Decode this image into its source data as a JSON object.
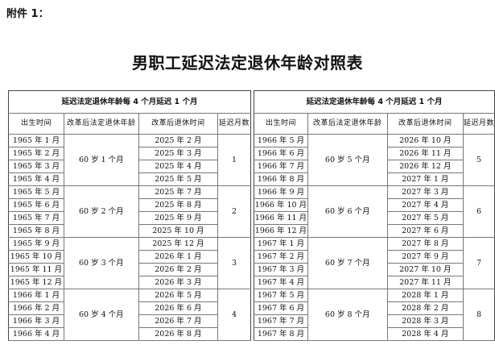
{
  "attachment_label": "附件 1：",
  "title": "男职工延迟法定退休年龄对照表",
  "tables": [
    {
      "header": "延迟法定退休年龄每 4 个月延迟 1 个月",
      "columns": [
        "出生时间",
        "改革后法定退休年龄",
        "改革后退休时间",
        "延迟月数"
      ],
      "groups": [
        {
          "age": "60 岁 1 个月",
          "delay": "1",
          "rows": [
            [
              "1965 年 1 月",
              "2025 年 2 月"
            ],
            [
              "1965 年 2 月",
              "2025 年 3 月"
            ],
            [
              "1965 年 3 月",
              "2025 年 4 月"
            ],
            [
              "1965 年 4 月",
              "2025 年 5 月"
            ]
          ]
        },
        {
          "age": "60 岁 2 个月",
          "delay": "2",
          "rows": [
            [
              "1965 年 5 月",
              "2025 年 7 月"
            ],
            [
              "1965 年 6 月",
              "2025 年 8 月"
            ],
            [
              "1965 年 7 月",
              "2025 年 9 月"
            ],
            [
              "1965 年 8 月",
              "2025 年 10 月"
            ]
          ]
        },
        {
          "age": "60 岁 3 个月",
          "delay": "3",
          "rows": [
            [
              "1965 年 9 月",
              "2025 年 12 月"
            ],
            [
              "1965 年 10 月",
              "2026 年 1 月"
            ],
            [
              "1965 年 11 月",
              "2026 年 2 月"
            ],
            [
              "1965 年 12 月",
              "2026 年 3 月"
            ]
          ]
        },
        {
          "age": "60 岁 4 个月",
          "delay": "4",
          "rows": [
            [
              "1966 年 1 月",
              "2026 年 5 月"
            ],
            [
              "1966 年 2 月",
              "2026 年 6 月"
            ],
            [
              "1966 年 3 月",
              "2026 年 7 月"
            ],
            [
              "1966 年 4 月",
              "2026 年 8 月"
            ]
          ]
        }
      ]
    },
    {
      "header": "延迟法定退休年龄每 4 个月延迟 1 个月",
      "columns": [
        "出生时间",
        "改革后法定退休年龄",
        "改革后退休时间",
        "延迟月数"
      ],
      "groups": [
        {
          "age": "60 岁 5 个月",
          "delay": "5",
          "rows": [
            [
              "1966 年 5 月",
              "2026 年 10 月"
            ],
            [
              "1966 年 6 月",
              "2026 年 11 月"
            ],
            [
              "1966 年 7 月",
              "2026 年 12 月"
            ],
            [
              "1966 年 8 月",
              "2027 年 1 月"
            ]
          ]
        },
        {
          "age": "60 岁 6 个月",
          "delay": "6",
          "rows": [
            [
              "1966 年 9 月",
              "2027 年 3 月"
            ],
            [
              "1966 年 10 月",
              "2027 年 4 月"
            ],
            [
              "1966 年 11 月",
              "2027 年 5 月"
            ],
            [
              "1966 年 12 月",
              "2027 年 6 月"
            ]
          ]
        },
        {
          "age": "60 岁 7 个月",
          "delay": "7",
          "rows": [
            [
              "1967 年 1 月",
              "2027 年 8 月"
            ],
            [
              "1967 年 2 月",
              "2027 年 9 月"
            ],
            [
              "1967 年 3 月",
              "2027 年 10 月"
            ],
            [
              "1967 年 4 月",
              "2027 年 11 月"
            ]
          ]
        },
        {
          "age": "60 岁 8 个月",
          "delay": "8",
          "rows": [
            [
              "1967 年 5 月",
              "2028 年 1 月"
            ],
            [
              "1967 年 6 月",
              "2028 年 2 月"
            ],
            [
              "1967 年 7 月",
              "2028 年 3 月"
            ],
            [
              "1967 年 8 月",
              "2028 年 4 月"
            ]
          ]
        }
      ]
    }
  ]
}
